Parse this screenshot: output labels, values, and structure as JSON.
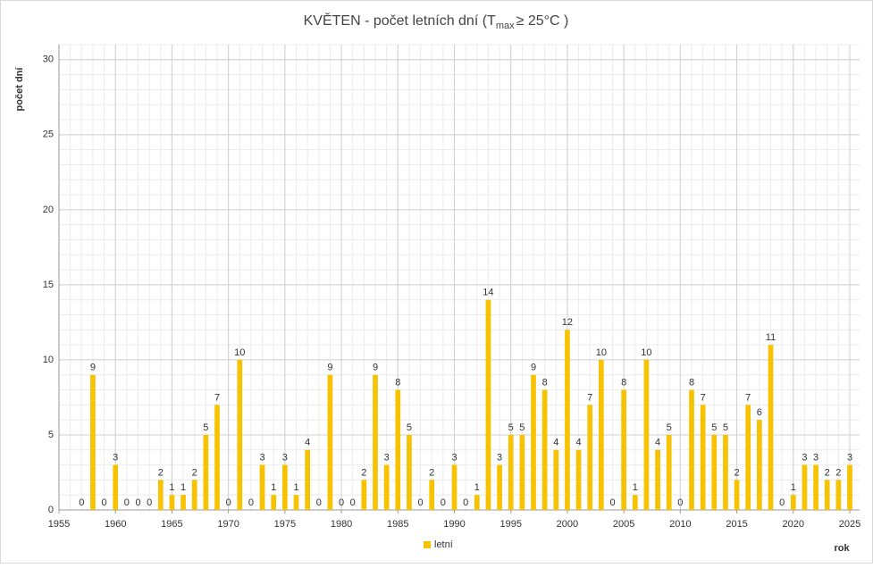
{
  "chart_data": {
    "type": "bar",
    "title_parts": [
      "KVĚTEN - počet letních dní (T",
      "max",
      "≥ 25°C )"
    ],
    "ylabel": "počet dní",
    "xlabel": "rok",
    "x": [
      1957,
      1958,
      1959,
      1960,
      1961,
      1962,
      1963,
      1964,
      1965,
      1966,
      1967,
      1968,
      1969,
      1970,
      1971,
      1972,
      1973,
      1974,
      1975,
      1976,
      1977,
      1978,
      1979,
      1980,
      1981,
      1982,
      1983,
      1984,
      1985,
      1986,
      1987,
      1988,
      1989,
      1990,
      1991,
      1992,
      1993,
      1994,
      1995,
      1996,
      1997,
      1998,
      1999,
      2000,
      2001,
      2002,
      2003,
      2004,
      2005,
      2006,
      2007,
      2008,
      2009,
      2010,
      2011,
      2012,
      2013,
      2014,
      2015,
      2016,
      2017,
      2018,
      2019,
      2020,
      2021,
      2022,
      2023,
      2024,
      2025
    ],
    "series": [
      {
        "name": "letní",
        "color": "#f7c200",
        "values": [
          0,
          9,
          0,
          3,
          0,
          0,
          0,
          2,
          1,
          1,
          2,
          5,
          7,
          0,
          10,
          0,
          3,
          1,
          3,
          1,
          4,
          0,
          9,
          0,
          0,
          2,
          9,
          3,
          8,
          5,
          0,
          2,
          0,
          3,
          0,
          1,
          14,
          3,
          5,
          5,
          9,
          8,
          4,
          12,
          4,
          7,
          10,
          0,
          8,
          1,
          10,
          4,
          5,
          0,
          8,
          7,
          5,
          5,
          2,
          7,
          6,
          11,
          0,
          1,
          3,
          3,
          2,
          2,
          3
        ]
      }
    ],
    "xlim": [
      1955,
      2025
    ],
    "xticks": [
      1955,
      1960,
      1965,
      1970,
      1975,
      1980,
      1985,
      1990,
      1995,
      2000,
      2005,
      2010,
      2015,
      2020,
      2025
    ],
    "ylim": [
      0,
      31
    ],
    "yticks": [
      0,
      5,
      10,
      15,
      20,
      25,
      30
    ],
    "grid": true,
    "legend": "bottom"
  }
}
